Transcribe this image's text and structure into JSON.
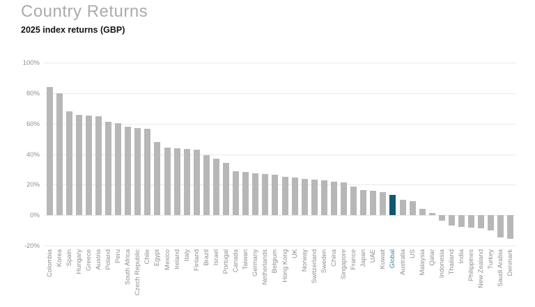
{
  "header": {
    "title": "Country Returns",
    "subtitle": "2025 index returns (GBP)"
  },
  "chart_data": {
    "type": "bar",
    "title": "Country Returns",
    "subtitle": "2025 index returns (GBP)",
    "xlabel": "",
    "ylabel": "",
    "ylim": [
      -20,
      100
    ],
    "yticks": [
      100,
      80,
      60,
      40,
      20,
      0,
      -20
    ],
    "ytick_suffix": "%",
    "grid": true,
    "legend": false,
    "categories": [
      "Colombia",
      "Korea",
      "Spain",
      "Hungary",
      "Greece",
      "Austria",
      "Poland",
      "Peru",
      "South Africa",
      "Czech Republic",
      "Chile",
      "Egypt",
      "Mexico",
      "Ireland",
      "Italy",
      "Finland",
      "Brazil",
      "Israel",
      "Portugal",
      "Canada",
      "Taiwan",
      "Germany",
      "Netherlands",
      "Belgium",
      "Hong Kong",
      "UK",
      "Norway",
      "Switzerland",
      "Sweden",
      "China",
      "Singapore",
      "France",
      "Japan",
      "UAE",
      "Kuwait",
      "Global",
      "Australia",
      "US",
      "Malaysia",
      "Qatar",
      "Indonesia",
      "Thailand",
      "India",
      "Philippines",
      "New Zealand",
      "Turkey",
      "Saudi Arabia",
      "Denmark"
    ],
    "values": [
      84,
      80,
      68,
      66,
      65.5,
      65,
      61,
      60.5,
      58,
      57,
      56.5,
      48,
      44.5,
      44,
      43.5,
      43,
      39.5,
      37,
      34.5,
      29,
      28.5,
      27.5,
      27,
      26.5,
      25,
      24.5,
      24,
      23.5,
      23,
      22,
      21.5,
      19,
      16.5,
      16,
      15,
      13.5,
      10,
      9,
      4,
      1.5,
      -3.5,
      -7,
      -7.5,
      -8,
      -8.5,
      -10,
      -14.5,
      -15.5
    ],
    "highlight_category": "Global",
    "colors": {
      "bar": "#b7b7b7",
      "highlight_bar": "#0e5971",
      "highlight_label": "#4480a0",
      "axis_label": "#8f8f8f",
      "grid": "#e8e8e8",
      "title": "#ababab",
      "subtitle": "#141414"
    }
  }
}
